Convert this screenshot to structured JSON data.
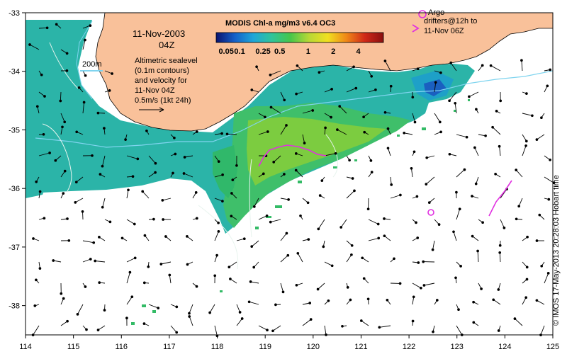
{
  "header": {
    "date": "11-Nov-2003",
    "time": "04Z",
    "product_title": "MODIS Chl-a mg/m3 v6.4 OC3"
  },
  "colorbar": {
    "tick_labels": [
      "0.05",
      "0.1",
      "0.25",
      "0.5",
      "1",
      "2",
      "4"
    ],
    "colors": [
      "#0a1470",
      "#1560c8",
      "#1fa6d8",
      "#2fc49a",
      "#47c64a",
      "#b8d836",
      "#f0e020",
      "#f08818",
      "#d02818",
      "#8a1010"
    ]
  },
  "legend": {
    "isobath_label": "200m",
    "isobath_color": "#7fd4ef",
    "altimetry_lines": [
      "Altimetric sealevel",
      "(0.1m contours)",
      "and velocity for",
      "11-Nov 04Z",
      "0.5m/s (1kt 24h)"
    ],
    "argo_lines": [
      "Argo",
      "drifters@12h to",
      "11-Nov 06Z"
    ],
    "argo_color": "#e030e0"
  },
  "axes": {
    "x_ticks": [
      "114",
      "115",
      "116",
      "117",
      "118",
      "119",
      "120",
      "121",
      "122",
      "123",
      "124",
      "125"
    ],
    "y_ticks": [
      "-33",
      "-34",
      "-35",
      "-36",
      "-37",
      "-38"
    ],
    "xlim": [
      114,
      125
    ],
    "ylim": [
      -38.5,
      -33
    ]
  },
  "credit": "© IMOS 17-May-2013 20:28:03 Hobart time",
  "colors": {
    "land": "#f9c19a",
    "ocean_green": "#2fb86a",
    "ocean_cyan": "#22b7c8",
    "background": "#ffffff"
  }
}
